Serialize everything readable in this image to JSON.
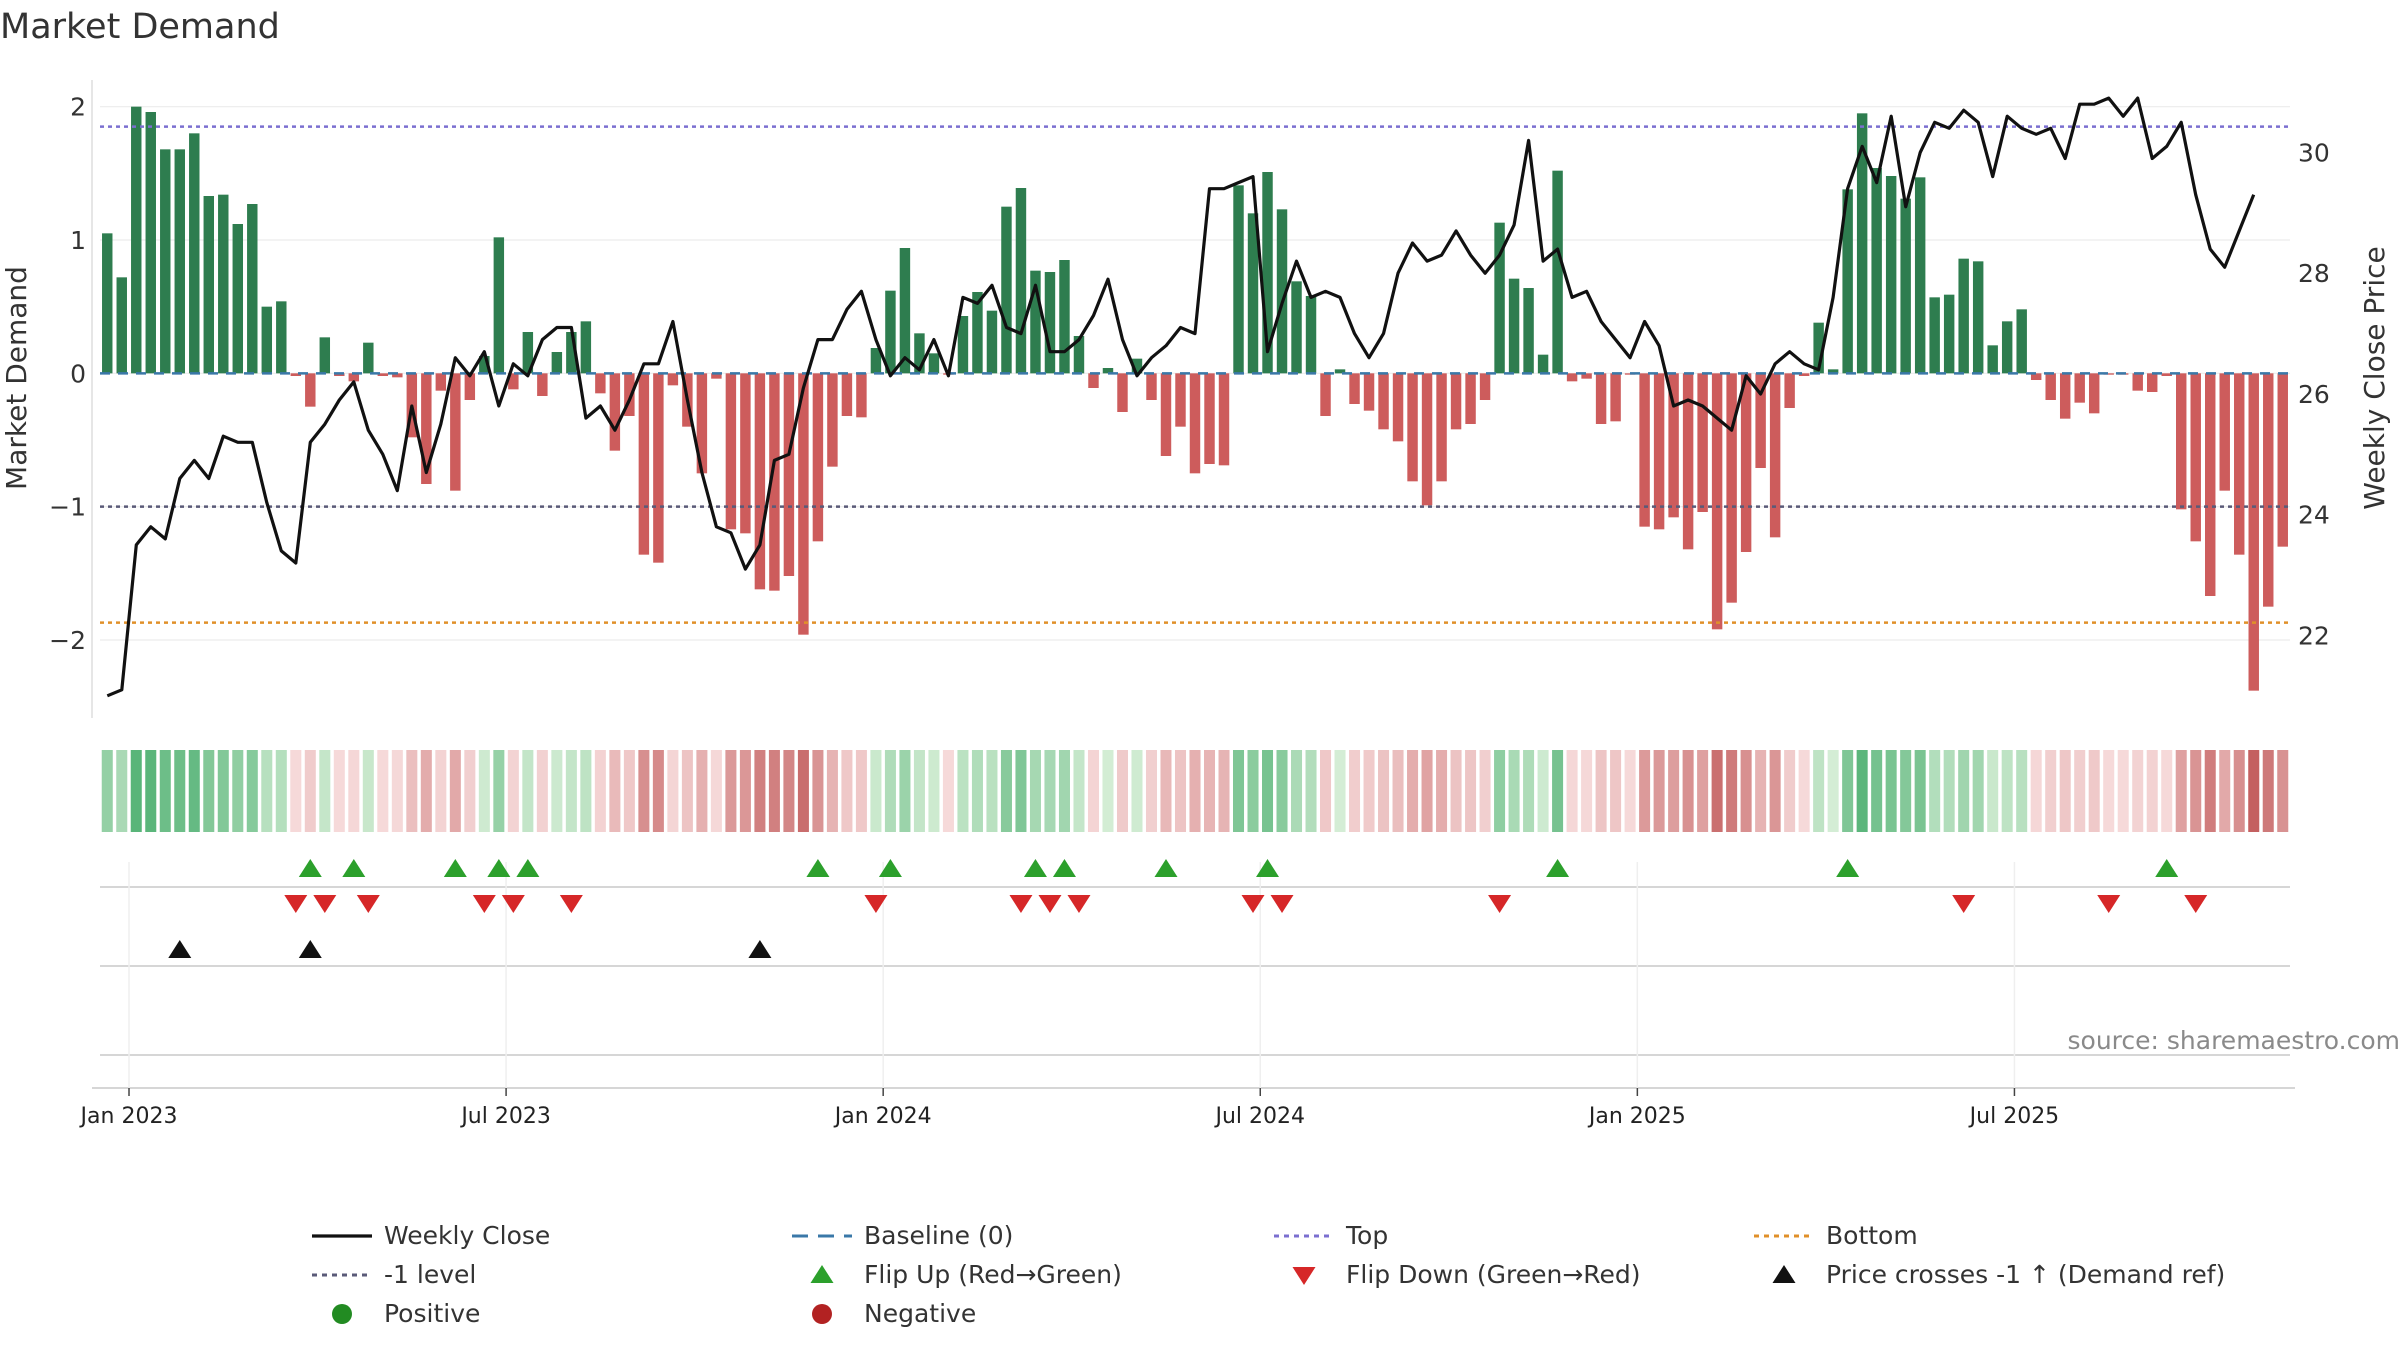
{
  "chart_data": {
    "type": "bar",
    "title": "Market Demand",
    "ylabel_left": "Market Demand",
    "ylabel_right": "Weekly Close Price",
    "xlabel": "",
    "source": "source: sharemaestro.com",
    "x_ticks": [
      "Jan 2023",
      "Jul 2023",
      "Jan 2024",
      "Jul 2024",
      "Jan 2025",
      "Jul 2025"
    ],
    "y_left_ticks": [
      "−2",
      "−1",
      "0",
      "1",
      "2"
    ],
    "y_right_ticks": [
      "22",
      "24",
      "26",
      "28",
      "30"
    ],
    "ylim_left": [
      -2.6,
      2.2
    ],
    "ylim_right": [
      20.6,
      31.2
    ],
    "levels": {
      "top": 1.85,
      "bottom": -1.87,
      "minus_one": -1.0,
      "baseline": 0
    },
    "demand": [
      1.05,
      0.72,
      2.0,
      1.96,
      1.68,
      1.68,
      1.8,
      1.33,
      1.34,
      1.12,
      1.27,
      0.5,
      0.54,
      -0.02,
      -0.25,
      0.27,
      -0.02,
      -0.06,
      0.23,
      -0.02,
      -0.03,
      -0.48,
      -0.83,
      -0.13,
      -0.88,
      -0.2,
      0.13,
      1.02,
      -0.12,
      0.31,
      -0.17,
      0.16,
      0.31,
      0.39,
      -0.15,
      -0.58,
      -0.32,
      -1.36,
      -1.42,
      -0.09,
      -0.4,
      -0.75,
      -0.04,
      -1.17,
      -1.2,
      -1.62,
      -1.63,
      -1.52,
      -1.96,
      -1.26,
      -0.7,
      -0.32,
      -0.33,
      0.19,
      0.62,
      0.94,
      0.3,
      0.15,
      -0.01,
      0.43,
      0.61,
      0.47,
      1.25,
      1.39,
      0.77,
      0.76,
      0.85,
      0.28,
      -0.11,
      0.04,
      -0.29,
      0.11,
      -0.2,
      -0.62,
      -0.4,
      -0.75,
      -0.68,
      -0.69,
      1.41,
      1.2,
      1.51,
      1.23,
      0.69,
      0.58,
      -0.32,
      0.03,
      -0.23,
      -0.28,
      -0.42,
      -0.51,
      -0.81,
      -0.99,
      -0.81,
      -0.42,
      -0.38,
      -0.2,
      1.13,
      0.71,
      0.64,
      0.14,
      1.52,
      -0.06,
      -0.04,
      -0.38,
      -0.36,
      -0.01,
      -1.15,
      -1.17,
      -1.08,
      -1.32,
      -1.04,
      -1.92,
      -1.72,
      -1.34,
      -0.71,
      -1.23,
      -0.26,
      -0.02,
      0.38,
      0.03,
      1.38,
      1.95,
      1.54,
      1.48,
      1.31,
      1.47,
      0.57,
      0.59,
      0.86,
      0.84,
      0.21,
      0.39,
      0.48,
      -0.05,
      -0.2,
      -0.34,
      -0.22,
      -0.3,
      -0.01,
      -0.01,
      -0.13,
      -0.14,
      -0.02,
      -1.02,
      -1.26,
      -1.67,
      -0.88,
      -1.36,
      -2.38,
      -1.75,
      -1.3
    ],
    "weekly_close": [
      21.0,
      21.1,
      23.5,
      23.8,
      23.6,
      24.6,
      24.9,
      24.6,
      25.3,
      25.2,
      25.2,
      24.2,
      23.4,
      23.2,
      25.2,
      25.5,
      25.9,
      26.2,
      25.4,
      25.0,
      24.4,
      25.8,
      24.7,
      25.5,
      26.6,
      26.3,
      26.7,
      25.8,
      26.5,
      26.3,
      26.9,
      27.1,
      27.1,
      25.6,
      25.8,
      25.4,
      25.9,
      26.5,
      26.5,
      27.2,
      25.9,
      24.7,
      23.8,
      23.7,
      23.1,
      23.5,
      24.9,
      25.0,
      26.1,
      26.9,
      26.9,
      27.4,
      27.7,
      26.9,
      26.3,
      26.6,
      26.4,
      26.9,
      26.3,
      27.6,
      27.5,
      27.8,
      27.1,
      27.0,
      27.8,
      26.7,
      26.7,
      26.9,
      27.3,
      27.9,
      26.9,
      26.3,
      26.6,
      26.8,
      27.1,
      27.0,
      29.4,
      29.4,
      29.5,
      29.6,
      26.7,
      27.5,
      28.2,
      27.6,
      27.7,
      27.6,
      27.0,
      26.6,
      27.0,
      28.0,
      28.5,
      28.2,
      28.3,
      28.7,
      28.3,
      28.0,
      28.3,
      28.8,
      30.2,
      28.2,
      28.4,
      27.6,
      27.7,
      27.2,
      26.9,
      26.6,
      27.2,
      26.8,
      25.8,
      25.9,
      25.8,
      25.6,
      25.4,
      26.3,
      26.0,
      26.5,
      26.7,
      26.5,
      26.4,
      27.6,
      29.4,
      30.1,
      29.5,
      30.6,
      29.1,
      30.0,
      30.5,
      30.4,
      30.7,
      30.5,
      29.6,
      30.6,
      30.4,
      30.3,
      30.4,
      29.9,
      30.8,
      30.8,
      30.9,
      30.6,
      30.9,
      29.9,
      30.1,
      30.5,
      29.3,
      28.4,
      28.1,
      28.7,
      29.3
    ],
    "flip_up_weeks": [
      14,
      17,
      24,
      27,
      29,
      49,
      54,
      64,
      66,
      73,
      80,
      100,
      120,
      142
    ],
    "flip_down_weeks": [
      13,
      15,
      18,
      26,
      28,
      32,
      53,
      63,
      65,
      67,
      79,
      81,
      96,
      128,
      138,
      144
    ],
    "price_cross_weeks": [
      5,
      14,
      45
    ],
    "legend": [
      {
        "label": "Weekly Close",
        "marker": "line",
        "color": "#111111"
      },
      {
        "label": "Baseline (0)",
        "marker": "dash",
        "color": "#3a78a8"
      },
      {
        "label": "Top",
        "marker": "dot",
        "color": "#7b6fd0"
      },
      {
        "label": "Bottom",
        "marker": "dot",
        "color": "#e0902a"
      },
      {
        "label": "-1 level",
        "marker": "dot",
        "color": "#5a5a78"
      },
      {
        "label": "Flip Up (Red→Green)",
        "marker": "tri-up",
        "color": "#2ca02c"
      },
      {
        "label": "Flip Down (Green→Red)",
        "marker": "tri-down",
        "color": "#d62728"
      },
      {
        "label": "Price crosses -1 ↑ (Demand ref)",
        "marker": "tri-up",
        "color": "#111111"
      },
      {
        "label": "Positive",
        "marker": "circle",
        "color": "#228b22"
      },
      {
        "label": "Negative",
        "marker": "circle",
        "color": "#b22222"
      }
    ],
    "colors": {
      "positive_bar": "#2e7d4f",
      "negative_bar": "#cd5c5c",
      "close_line": "#111111",
      "top_line": "#7b6fd0",
      "bottom_line": "#e0902a",
      "minus_one_line": "#5a5a78",
      "baseline": "#3a78a8"
    }
  }
}
